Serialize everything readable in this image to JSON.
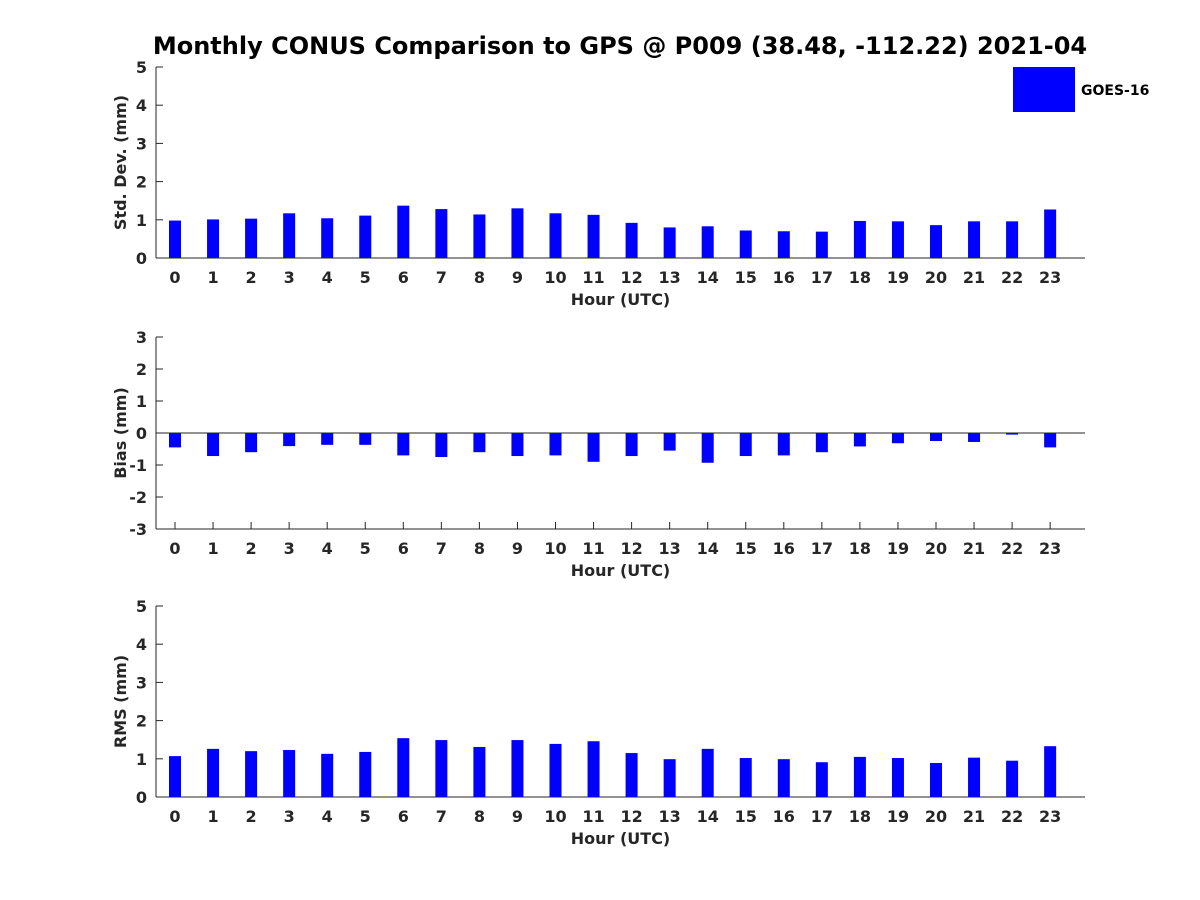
{
  "chart_data": {
    "type": "bar",
    "title": "Monthly CONUS Comparison to GPS @ P009 (38.48, -112.22) 2021-04",
    "series_name": "GOES-16",
    "series_color": "#0000ff",
    "legend_position": "top-right",
    "categories": [
      "0",
      "1",
      "2",
      "3",
      "4",
      "5",
      "6",
      "7",
      "8",
      "9",
      "10",
      "11",
      "12",
      "13",
      "14",
      "15",
      "16",
      "17",
      "18",
      "19",
      "20",
      "21",
      "22",
      "23"
    ],
    "panels": [
      {
        "id": "std",
        "ylabel": "Std. Dev. (mm)",
        "xlabel": "Hour (UTC)",
        "ylim": [
          0,
          5
        ],
        "yticks": [
          "0",
          "1",
          "2",
          "3",
          "4",
          "5"
        ],
        "values": [
          0.98,
          1.01,
          1.03,
          1.17,
          1.04,
          1.11,
          1.37,
          1.28,
          1.14,
          1.3,
          1.17,
          1.13,
          0.92,
          0.8,
          0.83,
          0.72,
          0.7,
          0.69,
          0.97,
          0.96,
          0.86,
          0.96,
          0.96,
          1.27
        ]
      },
      {
        "id": "bias",
        "ylabel": "Bias (mm)",
        "xlabel": "Hour (UTC)",
        "ylim": [
          -3,
          3
        ],
        "yticks": [
          "-3",
          "-2",
          "-1",
          "0",
          "1",
          "2",
          "3"
        ],
        "values": [
          -0.45,
          -0.72,
          -0.6,
          -0.41,
          -0.37,
          -0.37,
          -0.7,
          -0.75,
          -0.6,
          -0.72,
          -0.7,
          -0.9,
          -0.72,
          -0.55,
          -0.93,
          -0.72,
          -0.7,
          -0.6,
          -0.42,
          -0.32,
          -0.25,
          -0.28,
          -0.05,
          -0.45
        ]
      },
      {
        "id": "rms",
        "ylabel": "RMS (mm)",
        "xlabel": "Hour (UTC)",
        "ylim": [
          0,
          5
        ],
        "yticks": [
          "0",
          "1",
          "2",
          "3",
          "4",
          "5"
        ],
        "values": [
          1.07,
          1.26,
          1.2,
          1.23,
          1.13,
          1.18,
          1.54,
          1.49,
          1.31,
          1.49,
          1.39,
          1.46,
          1.15,
          0.99,
          1.26,
          1.02,
          0.99,
          0.91,
          1.05,
          1.02,
          0.89,
          1.03,
          0.95,
          1.33
        ]
      }
    ]
  }
}
